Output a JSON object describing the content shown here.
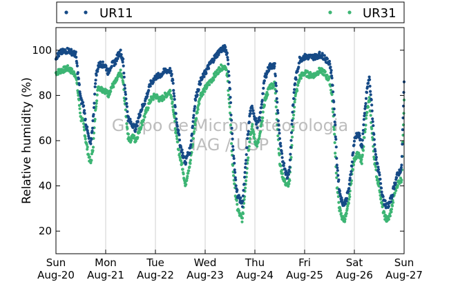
{
  "chart_data": {
    "type": "scatter",
    "title": "",
    "ylabel": "Relative humidity (%)",
    "xlabel": "",
    "ylim": [
      10,
      110
    ],
    "xlim": [
      0,
      7
    ],
    "x_unit_note": "days from Sun Aug-20 00:00",
    "yticks": [
      20,
      40,
      60,
      80,
      100
    ],
    "xticks": [
      {
        "x": 0,
        "day": "Sun",
        "date": "Aug-20"
      },
      {
        "x": 1,
        "day": "Mon",
        "date": "Aug-21"
      },
      {
        "x": 2,
        "day": "Tue",
        "date": "Aug-22"
      },
      {
        "x": 3,
        "day": "Wed",
        "date": "Aug-23"
      },
      {
        "x": 4,
        "day": "Thu",
        "date": "Aug-24"
      },
      {
        "x": 5,
        "day": "Fri",
        "date": "Aug-25"
      },
      {
        "x": 6,
        "day": "Sat",
        "date": "Aug-26"
      },
      {
        "x": 7,
        "day": "Sun",
        "date": "Aug-27"
      }
    ],
    "grid": "vertical",
    "legend_position": "top",
    "watermark": [
      "Grupo de Micrometeorologia",
      "IAG / USP"
    ],
    "series": [
      {
        "name": "UR11",
        "color": "#164a86",
        "points": [
          [
            0,
            97
          ],
          [
            0.1,
            99
          ],
          [
            0.25,
            100
          ],
          [
            0.4,
            98
          ],
          [
            0.45,
            88
          ],
          [
            0.5,
            78
          ],
          [
            0.55,
            76
          ],
          [
            0.6,
            68
          ],
          [
            0.67,
            60
          ],
          [
            0.7,
            58
          ],
          [
            0.75,
            70
          ],
          [
            0.8,
            88
          ],
          [
            0.85,
            93
          ],
          [
            0.9,
            94
          ],
          [
            1.0,
            93
          ],
          [
            1.05,
            90
          ],
          [
            1.1,
            93
          ],
          [
            1.2,
            95
          ],
          [
            1.25,
            98
          ],
          [
            1.3,
            99
          ],
          [
            1.35,
            95
          ],
          [
            1.38,
            85
          ],
          [
            1.45,
            70
          ],
          [
            1.5,
            68
          ],
          [
            1.55,
            67
          ],
          [
            1.6,
            65
          ],
          [
            1.7,
            73
          ],
          [
            1.8,
            78
          ],
          [
            1.9,
            85
          ],
          [
            2.0,
            88
          ],
          [
            2.1,
            89
          ],
          [
            2.2,
            91
          ],
          [
            2.3,
            91
          ],
          [
            2.35,
            86
          ],
          [
            2.42,
            70
          ],
          [
            2.5,
            58
          ],
          [
            2.55,
            54
          ],
          [
            2.6,
            50
          ],
          [
            2.65,
            54
          ],
          [
            2.7,
            56
          ],
          [
            2.8,
            78
          ],
          [
            2.9,
            86
          ],
          [
            3.0,
            90
          ],
          [
            3.1,
            94
          ],
          [
            3.2,
            97
          ],
          [
            3.3,
            100
          ],
          [
            3.4,
            101
          ],
          [
            3.45,
            98
          ],
          [
            3.5,
            82
          ],
          [
            3.55,
            60
          ],
          [
            3.6,
            45
          ],
          [
            3.65,
            36
          ],
          [
            3.7,
            34
          ],
          [
            3.75,
            32
          ],
          [
            3.8,
            45
          ],
          [
            3.85,
            60
          ],
          [
            3.9,
            72
          ],
          [
            3.95,
            75
          ],
          [
            4.0,
            70
          ],
          [
            4.05,
            67
          ],
          [
            4.1,
            70
          ],
          [
            4.2,
            88
          ],
          [
            4.3,
            93
          ],
          [
            4.4,
            93
          ],
          [
            4.42,
            86
          ],
          [
            4.5,
            60
          ],
          [
            4.55,
            52
          ],
          [
            4.6,
            48
          ],
          [
            4.65,
            44
          ],
          [
            4.7,
            48
          ],
          [
            4.75,
            70
          ],
          [
            4.8,
            85
          ],
          [
            4.9,
            96
          ],
          [
            5.0,
            97
          ],
          [
            5.1,
            97
          ],
          [
            5.2,
            97
          ],
          [
            5.3,
            98
          ],
          [
            5.4,
            97
          ],
          [
            5.45,
            95
          ],
          [
            5.5,
            95
          ],
          [
            5.55,
            88
          ],
          [
            5.6,
            72
          ],
          [
            5.65,
            50
          ],
          [
            5.7,
            38
          ],
          [
            5.75,
            33
          ],
          [
            5.8,
            32
          ],
          [
            5.85,
            35
          ],
          [
            5.9,
            40
          ],
          [
            5.95,
            50
          ],
          [
            6.0,
            60
          ],
          [
            6.05,
            63
          ],
          [
            6.1,
            62
          ],
          [
            6.15,
            57
          ],
          [
            6.2,
            70
          ],
          [
            6.25,
            82
          ],
          [
            6.3,
            88
          ],
          [
            6.35,
            75
          ],
          [
            6.4,
            60
          ],
          [
            6.45,
            50
          ],
          [
            6.5,
            45
          ],
          [
            6.55,
            38
          ],
          [
            6.6,
            33
          ],
          [
            6.65,
            31
          ],
          [
            6.7,
            32
          ],
          [
            6.75,
            35
          ],
          [
            6.8,
            40
          ],
          [
            6.85,
            44
          ],
          [
            6.9,
            46
          ],
          [
            6.95,
            48
          ],
          [
            7.0,
            86
          ]
        ]
      },
      {
        "name": "UR31",
        "color": "#3db574",
        "points": [
          [
            0,
            90
          ],
          [
            0.1,
            91
          ],
          [
            0.25,
            92
          ],
          [
            0.4,
            89
          ],
          [
            0.45,
            80
          ],
          [
            0.5,
            70
          ],
          [
            0.55,
            68
          ],
          [
            0.6,
            60
          ],
          [
            0.67,
            52
          ],
          [
            0.7,
            50
          ],
          [
            0.75,
            58
          ],
          [
            0.8,
            75
          ],
          [
            0.85,
            84
          ],
          [
            0.9,
            83
          ],
          [
            1.0,
            82
          ],
          [
            1.05,
            80
          ],
          [
            1.1,
            83
          ],
          [
            1.2,
            86
          ],
          [
            1.25,
            88
          ],
          [
            1.3,
            90
          ],
          [
            1.35,
            86
          ],
          [
            1.38,
            78
          ],
          [
            1.45,
            62
          ],
          [
            1.5,
            60
          ],
          [
            1.55,
            62
          ],
          [
            1.6,
            60
          ],
          [
            1.7,
            66
          ],
          [
            1.8,
            72
          ],
          [
            1.9,
            78
          ],
          [
            2.0,
            80
          ],
          [
            2.1,
            78
          ],
          [
            2.2,
            80
          ],
          [
            2.3,
            82
          ],
          [
            2.35,
            76
          ],
          [
            2.42,
            62
          ],
          [
            2.5,
            52
          ],
          [
            2.55,
            48
          ],
          [
            2.6,
            40
          ],
          [
            2.65,
            46
          ],
          [
            2.7,
            50
          ],
          [
            2.8,
            68
          ],
          [
            2.9,
            80
          ],
          [
            3.0,
            83
          ],
          [
            3.1,
            86
          ],
          [
            3.2,
            89
          ],
          [
            3.3,
            92
          ],
          [
            3.4,
            93
          ],
          [
            3.45,
            88
          ],
          [
            3.5,
            72
          ],
          [
            3.55,
            50
          ],
          [
            3.6,
            38
          ],
          [
            3.65,
            30
          ],
          [
            3.7,
            27
          ],
          [
            3.75,
            25
          ],
          [
            3.8,
            38
          ],
          [
            3.85,
            50
          ],
          [
            3.9,
            62
          ],
          [
            3.95,
            66
          ],
          [
            4.0,
            60
          ],
          [
            4.05,
            58
          ],
          [
            4.1,
            62
          ],
          [
            4.2,
            78
          ],
          [
            4.3,
            84
          ],
          [
            4.4,
            85
          ],
          [
            4.42,
            78
          ],
          [
            4.5,
            50
          ],
          [
            4.55,
            45
          ],
          [
            4.6,
            42
          ],
          [
            4.65,
            40
          ],
          [
            4.7,
            42
          ],
          [
            4.75,
            62
          ],
          [
            4.8,
            78
          ],
          [
            4.9,
            88
          ],
          [
            5.0,
            90
          ],
          [
            5.1,
            89
          ],
          [
            5.2,
            89
          ],
          [
            5.3,
            91
          ],
          [
            5.4,
            90
          ],
          [
            5.45,
            88
          ],
          [
            5.5,
            87
          ],
          [
            5.55,
            80
          ],
          [
            5.6,
            62
          ],
          [
            5.65,
            40
          ],
          [
            5.7,
            30
          ],
          [
            5.75,
            26
          ],
          [
            5.8,
            25
          ],
          [
            5.85,
            28
          ],
          [
            5.9,
            35
          ],
          [
            5.95,
            45
          ],
          [
            6.0,
            52
          ],
          [
            6.05,
            54
          ],
          [
            6.1,
            53
          ],
          [
            6.15,
            50
          ],
          [
            6.2,
            62
          ],
          [
            6.25,
            72
          ],
          [
            6.3,
            78
          ],
          [
            6.35,
            65
          ],
          [
            6.4,
            52
          ],
          [
            6.45,
            44
          ],
          [
            6.5,
            40
          ],
          [
            6.55,
            32
          ],
          [
            6.6,
            27
          ],
          [
            6.65,
            25
          ],
          [
            6.7,
            26
          ],
          [
            6.75,
            30
          ],
          [
            6.8,
            36
          ],
          [
            6.85,
            40
          ],
          [
            6.9,
            42
          ],
          [
            6.95,
            43
          ],
          [
            7.0,
            78
          ]
        ]
      }
    ]
  }
}
